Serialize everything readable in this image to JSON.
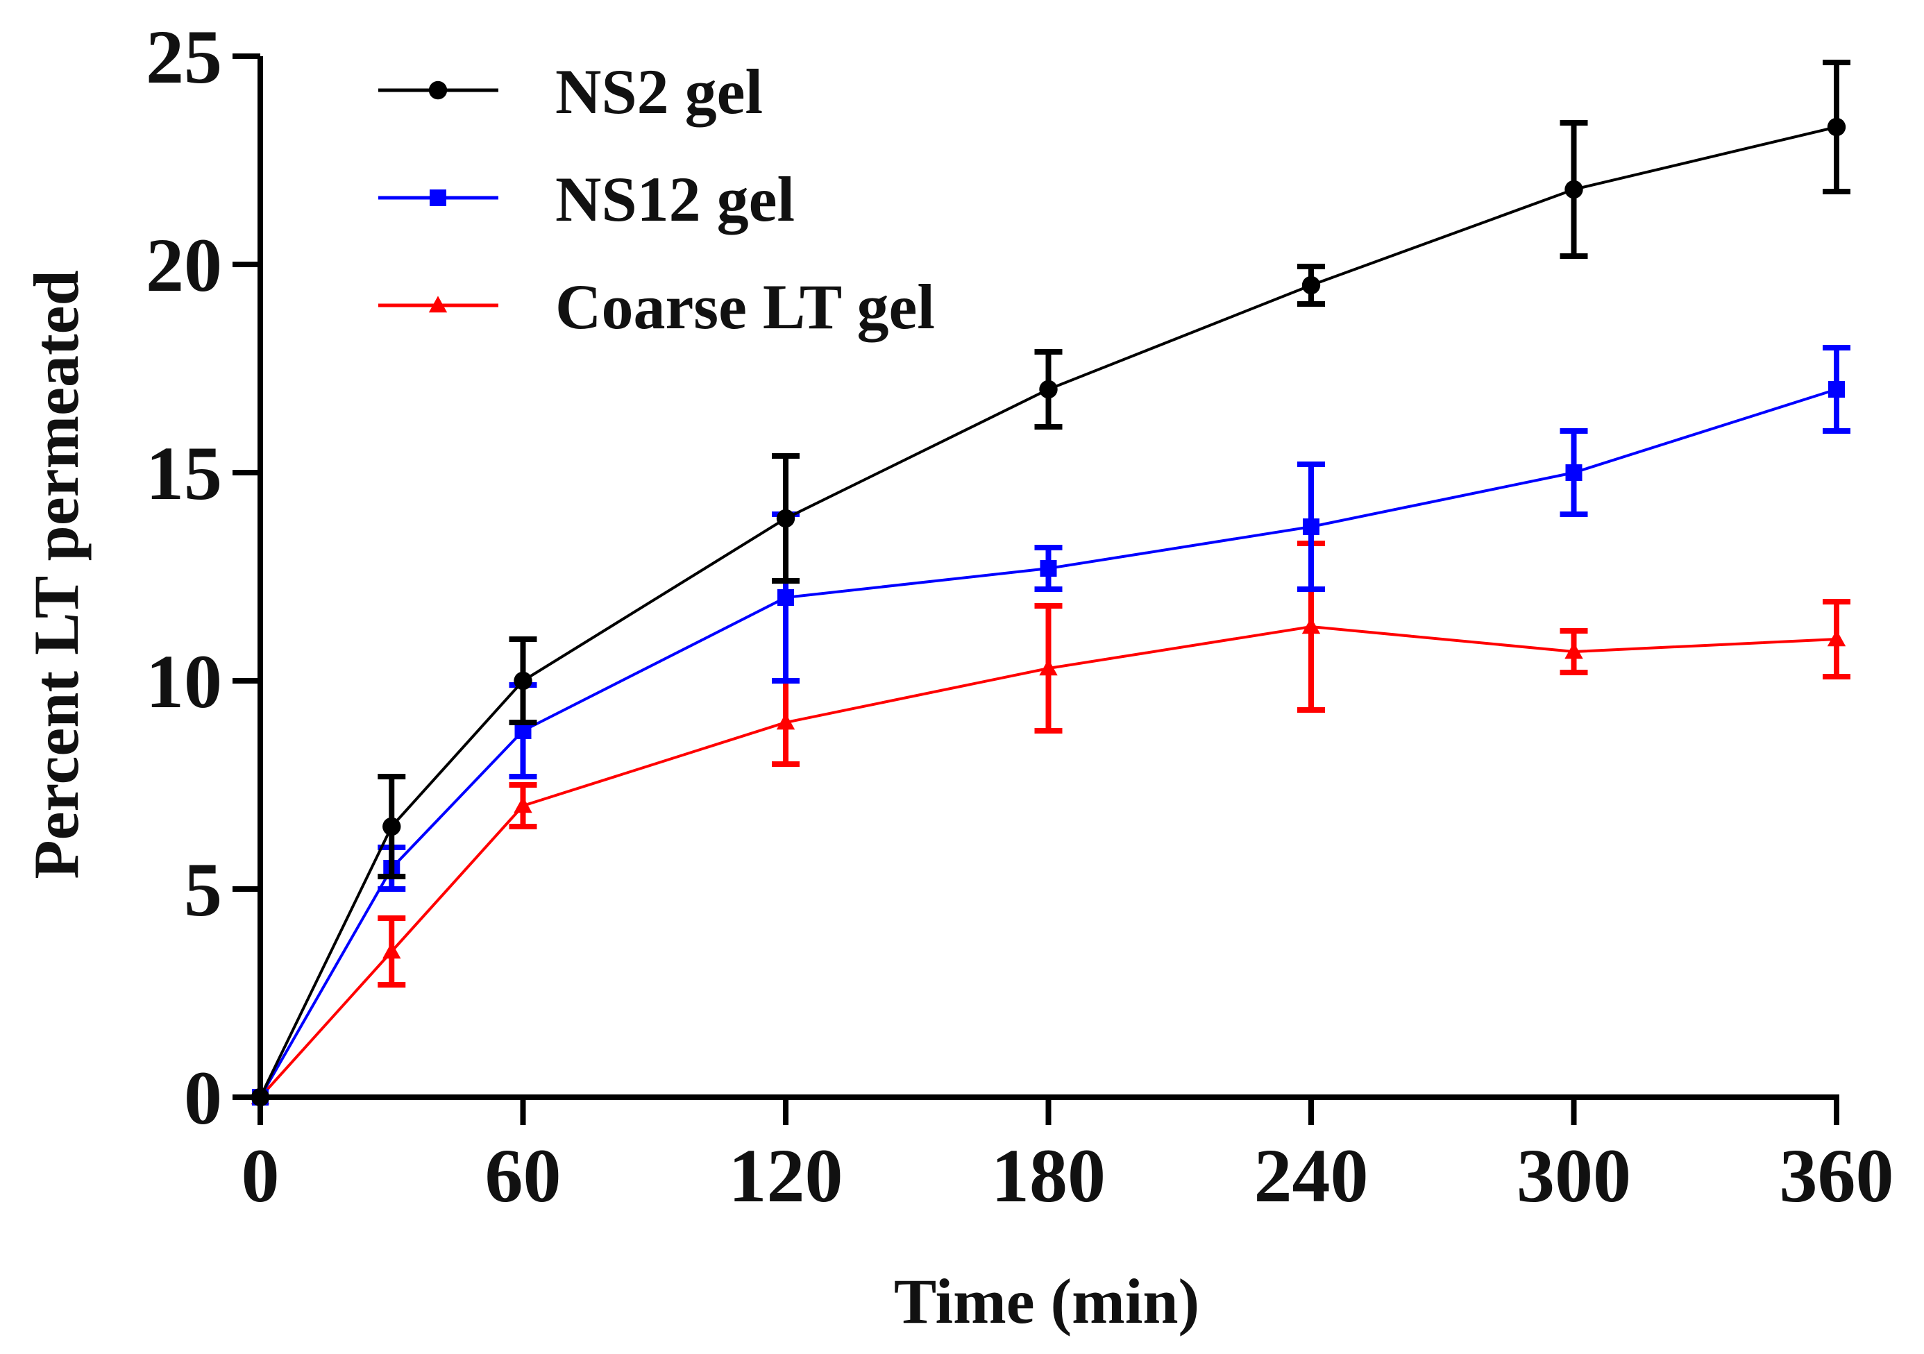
{
  "chart_data": {
    "type": "line",
    "title": "",
    "xlabel": "Time (min)",
    "ylabel": "Percent LT permeated",
    "xlim": [
      0,
      360
    ],
    "ylim": [
      0,
      25
    ],
    "x_ticks": [
      0,
      60,
      120,
      180,
      240,
      300,
      360
    ],
    "x_tick_labels": [
      "0",
      "60",
      "120",
      "180",
      "240",
      "300",
      "360"
    ],
    "y_ticks": [
      0,
      5,
      10,
      15,
      20,
      25
    ],
    "y_tick_labels": [
      "0",
      "5",
      "10",
      "15",
      "20",
      "25"
    ],
    "grid": false,
    "legend_position": "top-left",
    "x": [
      0,
      30,
      60,
      120,
      180,
      240,
      300,
      360
    ],
    "series": [
      {
        "name": "NS2 gel",
        "color": "#000000",
        "marker": "circle",
        "values": [
          0,
          6.5,
          10.0,
          13.9,
          17.0,
          19.5,
          21.8,
          23.3
        ],
        "errors": [
          0,
          1.2,
          1.0,
          1.5,
          0.9,
          0.45,
          1.6,
          1.55
        ]
      },
      {
        "name": "NS12 gel",
        "color": "#0000FF",
        "marker": "square",
        "values": [
          0,
          5.5,
          8.8,
          12.0,
          12.7,
          13.7,
          15.0,
          17.0
        ],
        "errors": [
          0,
          0.5,
          1.1,
          2.0,
          0.5,
          1.5,
          1.0,
          1.0
        ]
      },
      {
        "name": "Coarse LT gel",
        "color": "#FF0000",
        "marker": "triangle",
        "values": [
          0,
          3.5,
          7.0,
          9.0,
          10.3,
          11.3,
          10.7,
          11.0
        ],
        "errors": [
          0,
          0.8,
          0.5,
          1.0,
          1.5,
          2.0,
          0.5,
          0.9
        ]
      }
    ]
  }
}
